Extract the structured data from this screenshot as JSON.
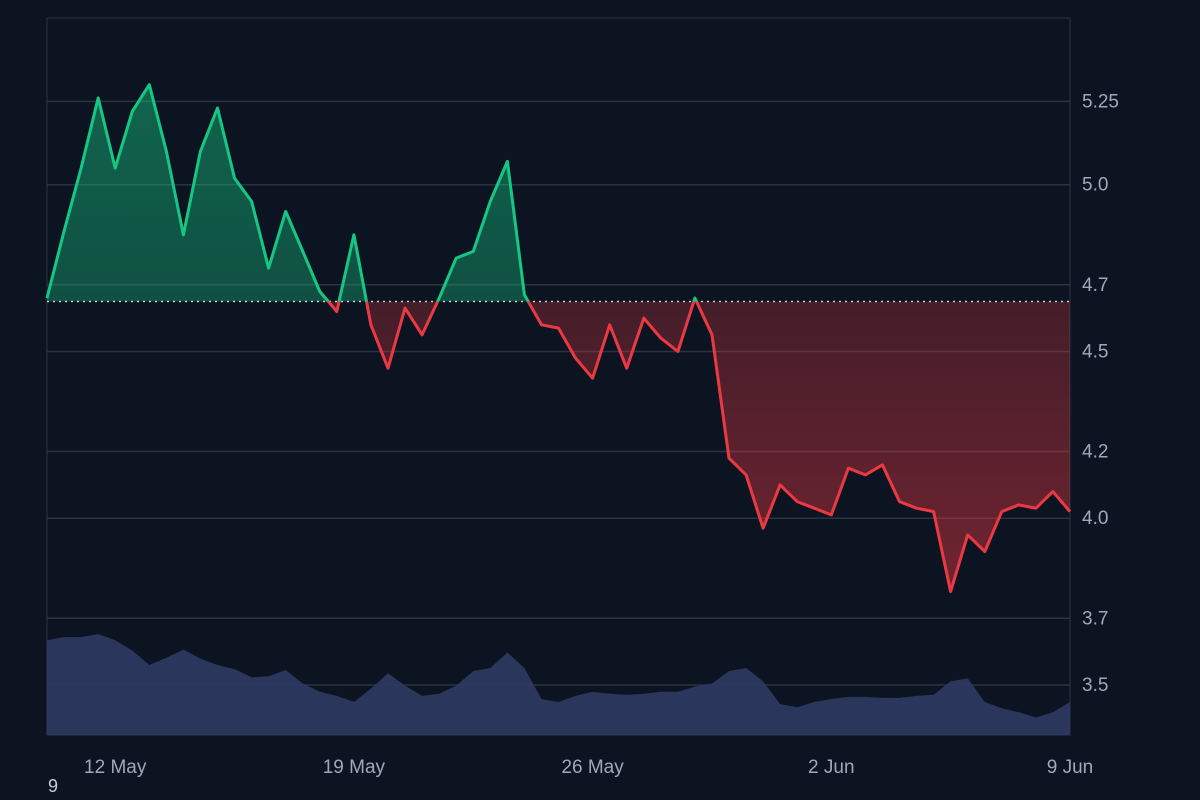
{
  "chart_data": {
    "type": "area",
    "baseline": 4.65,
    "colors": {
      "background": "#0d1421",
      "up": "#16c784",
      "down": "#ea3943",
      "grid": "#2a3342",
      "baseline": "#c9ced6",
      "volume": "#2f3a63",
      "text": "#a1a7bb"
    },
    "ylim": [
      3.35,
      5.5
    ],
    "y_ticks": [
      3.5,
      3.7,
      4.0,
      4.2,
      4.5,
      4.7,
      5.0,
      5.25
    ],
    "y_tick_labels": [
      "3.5",
      "3.7",
      "4.0",
      "4.2",
      "4.5",
      "4.7",
      "5.0",
      "5.25"
    ],
    "x_range": [
      "2024-05-10",
      "2024-06-09"
    ],
    "x_ticks": [
      "2024-05-12",
      "2024-05-19",
      "2024-05-26",
      "2024-06-02",
      "2024-06-09"
    ],
    "x_tick_labels": [
      "12 May",
      "19 May",
      "26 May",
      "2 Jun",
      "9 Jun"
    ],
    "series": [
      {
        "values": [
          [
            "2024-05-10",
            4.66
          ],
          [
            "2024-05-10 12:00",
            4.86
          ],
          [
            "2024-05-11",
            5.05
          ],
          [
            "2024-05-11 12:00",
            5.26
          ],
          [
            "2024-05-12",
            5.05
          ],
          [
            "2024-05-12 12:00",
            5.22
          ],
          [
            "2024-05-13",
            5.3
          ],
          [
            "2024-05-13 12:00",
            5.1
          ],
          [
            "2024-05-14",
            4.85
          ],
          [
            "2024-05-14 12:00",
            5.1
          ],
          [
            "2024-05-15",
            5.23
          ],
          [
            "2024-05-15 12:00",
            5.02
          ],
          [
            "2024-05-16",
            4.95
          ],
          [
            "2024-05-16 12:00",
            4.75
          ],
          [
            "2024-05-17",
            4.92
          ],
          [
            "2024-05-17 12:00",
            4.8
          ],
          [
            "2024-05-18",
            4.68
          ],
          [
            "2024-05-18 12:00",
            4.62
          ],
          [
            "2024-05-19",
            4.85
          ],
          [
            "2024-05-19 12:00",
            4.58
          ],
          [
            "2024-05-20",
            4.45
          ],
          [
            "2024-05-20 12:00",
            4.63
          ],
          [
            "2024-05-21",
            4.55
          ],
          [
            "2024-05-21 12:00",
            4.66
          ],
          [
            "2024-05-22",
            4.78
          ],
          [
            "2024-05-22 12:00",
            4.8
          ],
          [
            "2024-05-23",
            4.95
          ],
          [
            "2024-05-23 12:00",
            5.07
          ],
          [
            "2024-05-24",
            4.67
          ],
          [
            "2024-05-24 12:00",
            4.58
          ],
          [
            "2024-05-25",
            4.57
          ],
          [
            "2024-05-25 12:00",
            4.48
          ],
          [
            "2024-05-26",
            4.42
          ],
          [
            "2024-05-26 12:00",
            4.58
          ],
          [
            "2024-05-27",
            4.45
          ],
          [
            "2024-05-27 12:00",
            4.6
          ],
          [
            "2024-05-28",
            4.54
          ],
          [
            "2024-05-28 12:00",
            4.5
          ],
          [
            "2024-05-29",
            4.66
          ],
          [
            "2024-05-29 12:00",
            4.55
          ],
          [
            "2024-05-30",
            4.18
          ],
          [
            "2024-05-30 12:00",
            4.13
          ],
          [
            "2024-05-31",
            3.97
          ],
          [
            "2024-05-31 12:00",
            4.1
          ],
          [
            "2024-06-01",
            4.05
          ],
          [
            "2024-06-01 12:00",
            4.03
          ],
          [
            "2024-06-02",
            4.01
          ],
          [
            "2024-06-02 12:00",
            4.15
          ],
          [
            "2024-06-03",
            4.13
          ],
          [
            "2024-06-03 12:00",
            4.16
          ],
          [
            "2024-06-04",
            4.05
          ],
          [
            "2024-06-04 12:00",
            4.03
          ],
          [
            "2024-06-05",
            4.02
          ],
          [
            "2024-06-05 12:00",
            3.78
          ],
          [
            "2024-06-06",
            3.95
          ],
          [
            "2024-06-06 12:00",
            3.9
          ],
          [
            "2024-06-07",
            4.02
          ],
          [
            "2024-06-07 12:00",
            4.04
          ],
          [
            "2024-06-08",
            4.03
          ],
          [
            "2024-06-08 12:00",
            4.08
          ],
          [
            "2024-06-09",
            4.02
          ]
        ]
      }
    ],
    "volume": {
      "values": [
        [
          "2024-05-10",
          0.92
        ],
        [
          "2024-05-10 12:00",
          0.95
        ],
        [
          "2024-05-11",
          0.95
        ],
        [
          "2024-05-11 12:00",
          0.98
        ],
        [
          "2024-05-12",
          0.92
        ],
        [
          "2024-05-12 12:00",
          0.82
        ],
        [
          "2024-05-13",
          0.68
        ],
        [
          "2024-05-13 12:00",
          0.75
        ],
        [
          "2024-05-14",
          0.83
        ],
        [
          "2024-05-14 12:00",
          0.74
        ],
        [
          "2024-05-15",
          0.68
        ],
        [
          "2024-05-15 12:00",
          0.64
        ],
        [
          "2024-05-16",
          0.56
        ],
        [
          "2024-05-16 12:00",
          0.57
        ],
        [
          "2024-05-17",
          0.63
        ],
        [
          "2024-05-17 12:00",
          0.5
        ],
        [
          "2024-05-18",
          0.42
        ],
        [
          "2024-05-18 12:00",
          0.38
        ],
        [
          "2024-05-19",
          0.32
        ],
        [
          "2024-05-19 12:00",
          0.45
        ],
        [
          "2024-05-20",
          0.6
        ],
        [
          "2024-05-20 12:00",
          0.48
        ],
        [
          "2024-05-21",
          0.38
        ],
        [
          "2024-05-21 12:00",
          0.4
        ],
        [
          "2024-05-22",
          0.48
        ],
        [
          "2024-05-22 12:00",
          0.62
        ],
        [
          "2024-05-23",
          0.65
        ],
        [
          "2024-05-23 12:00",
          0.8
        ],
        [
          "2024-05-24",
          0.65
        ],
        [
          "2024-05-24 12:00",
          0.35
        ],
        [
          "2024-05-25",
          0.32
        ],
        [
          "2024-05-25 12:00",
          0.38
        ],
        [
          "2024-05-26",
          0.42
        ],
        [
          "2024-05-26 12:00",
          0.4
        ],
        [
          "2024-05-27",
          0.39
        ],
        [
          "2024-05-27 12:00",
          0.4
        ],
        [
          "2024-05-28",
          0.42
        ],
        [
          "2024-05-28 12:00",
          0.42
        ],
        [
          "2024-05-29",
          0.47
        ],
        [
          "2024-05-29 12:00",
          0.5
        ],
        [
          "2024-05-30",
          0.62
        ],
        [
          "2024-05-30 12:00",
          0.65
        ],
        [
          "2024-05-31",
          0.52
        ],
        [
          "2024-05-31 12:00",
          0.3
        ],
        [
          "2024-06-01",
          0.27
        ],
        [
          "2024-06-01 12:00",
          0.32
        ],
        [
          "2024-06-02",
          0.35
        ],
        [
          "2024-06-02 12:00",
          0.37
        ],
        [
          "2024-06-03",
          0.37
        ],
        [
          "2024-06-03 12:00",
          0.36
        ],
        [
          "2024-06-04",
          0.36
        ],
        [
          "2024-06-04 12:00",
          0.38
        ],
        [
          "2024-06-05",
          0.39
        ],
        [
          "2024-06-05 12:00",
          0.52
        ],
        [
          "2024-06-06",
          0.55
        ],
        [
          "2024-06-06 12:00",
          0.32
        ],
        [
          "2024-06-07",
          0.26
        ],
        [
          "2024-06-07 12:00",
          0.22
        ],
        [
          "2024-06-08",
          0.17
        ],
        [
          "2024-06-08 12:00",
          0.22
        ],
        [
          "2024-06-09",
          0.32
        ]
      ]
    }
  },
  "corner_label": "9"
}
